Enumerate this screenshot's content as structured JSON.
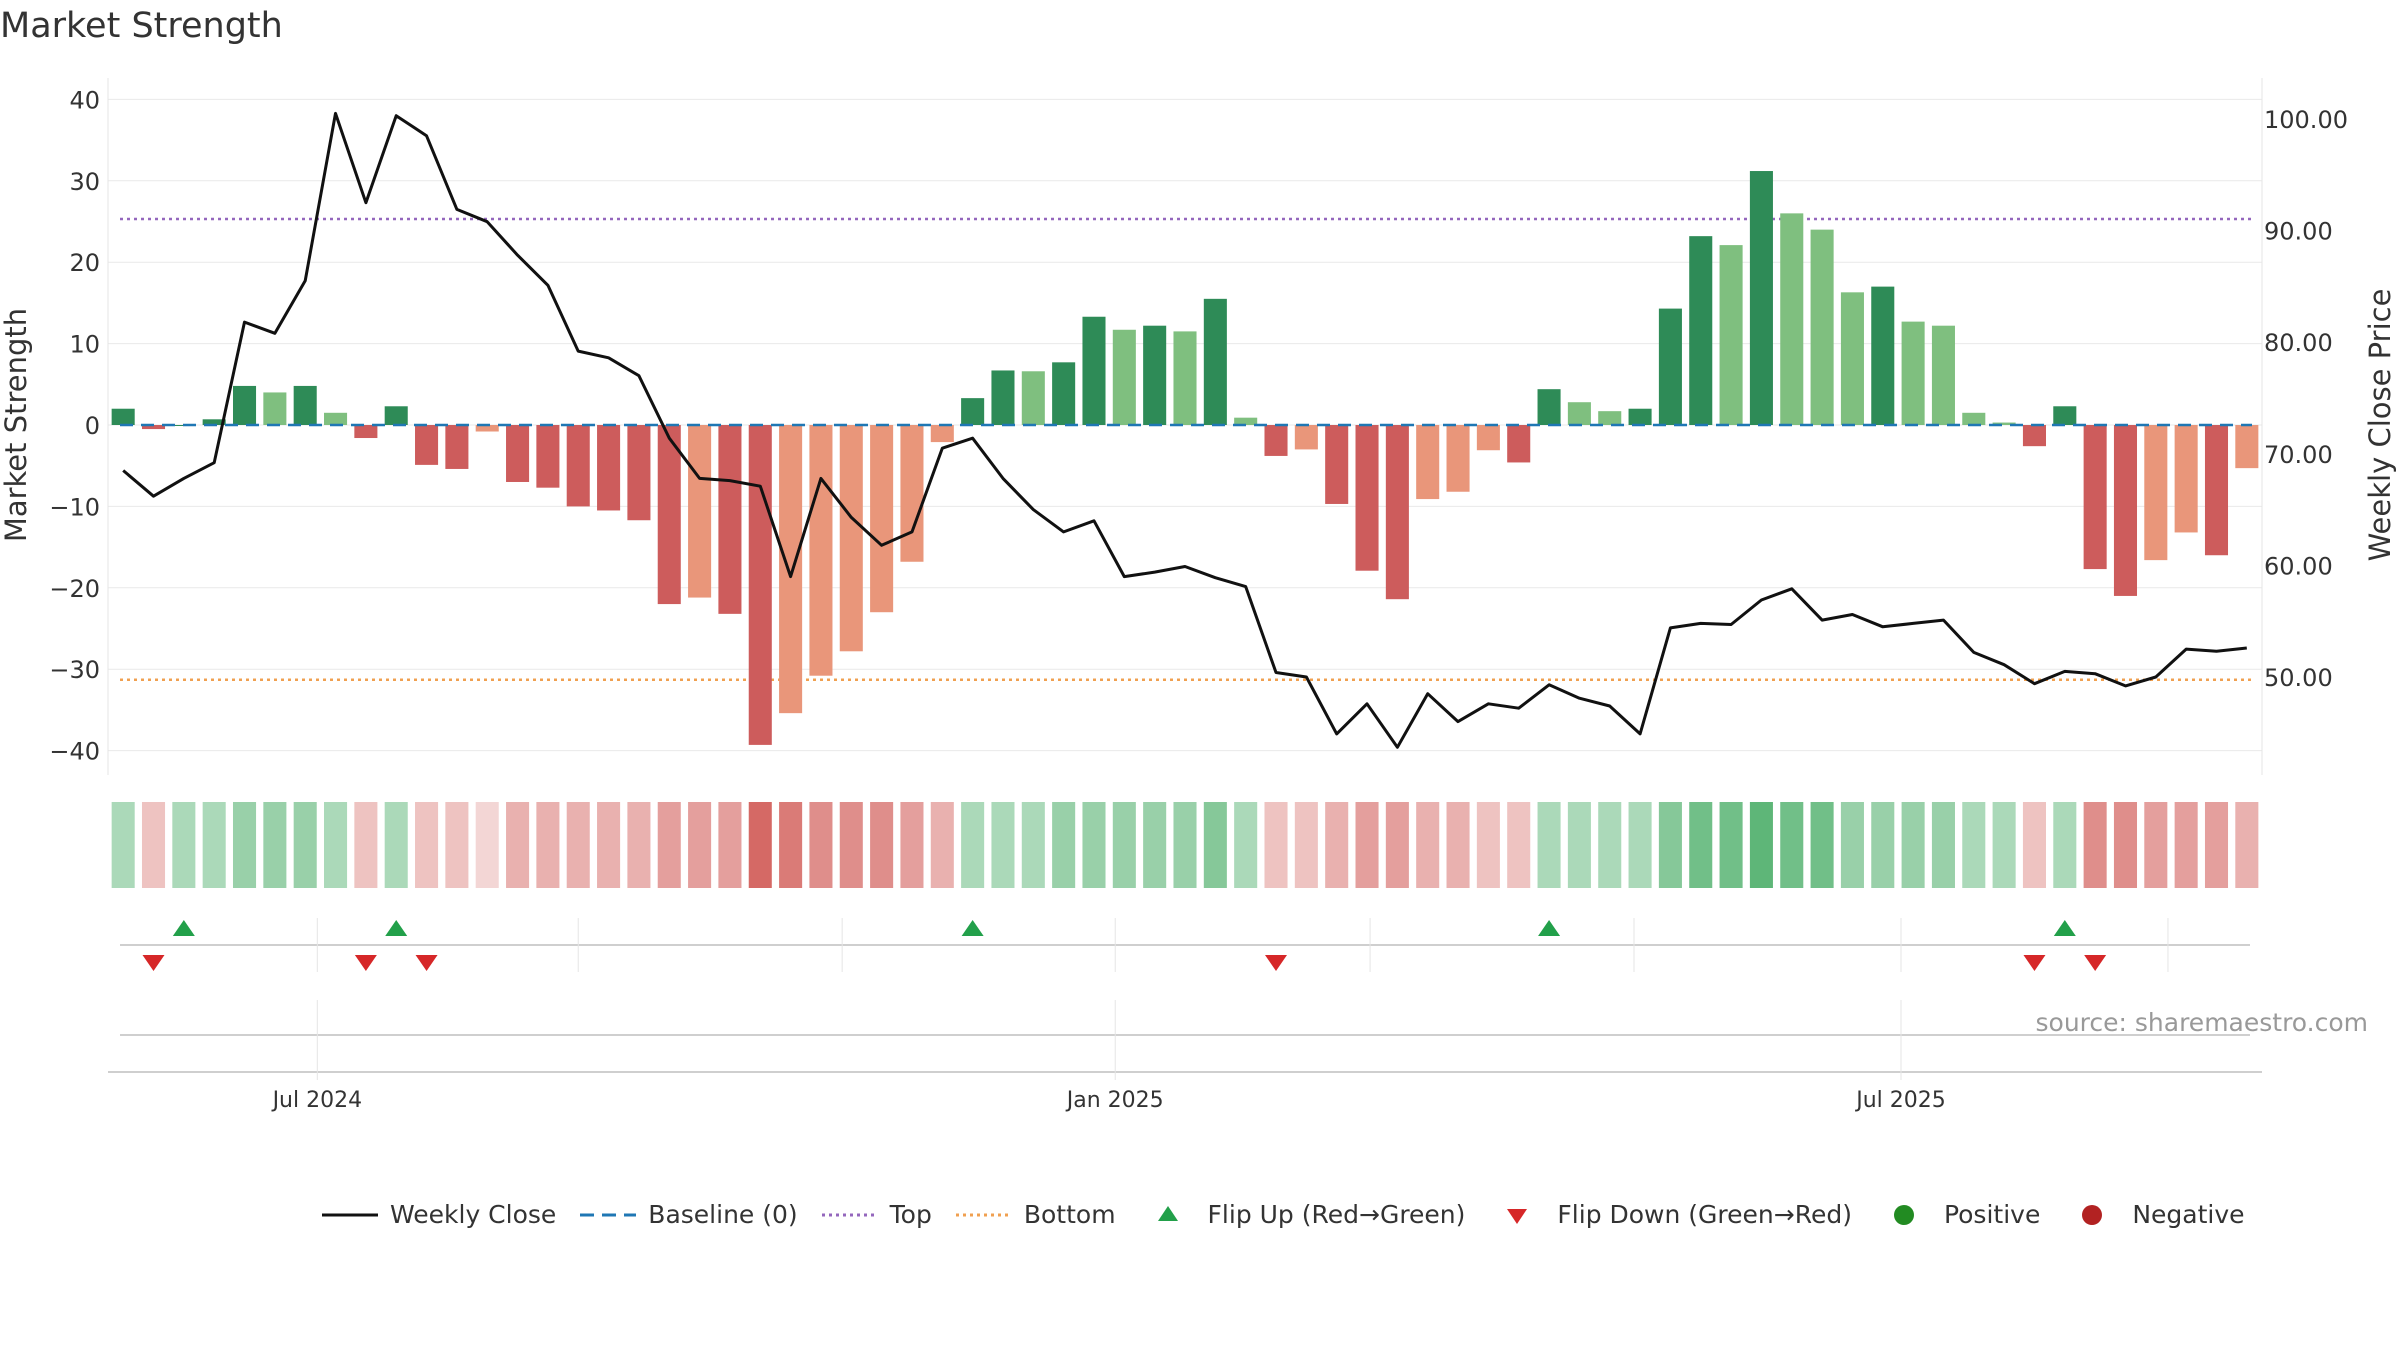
{
  "title": "Market Strength",
  "source": "source: sharemaestro.com",
  "colors": {
    "strong_green": "#2e8b57",
    "light_green": "#7fbf7f",
    "strong_red": "#cd5c5c",
    "light_red": "#e9967a",
    "close_line": "#111111",
    "baseline": "#1f77b4",
    "top_line": "#9467bd",
    "bottom_line": "#f0a050",
    "flip_up": "#22a04a",
    "flip_down": "#d62728",
    "positive": "#228b22",
    "negative": "#b22222"
  },
  "legend": [
    {
      "label": "Weekly Close",
      "kind": "line"
    },
    {
      "label": "Baseline (0)",
      "kind": "dash"
    },
    {
      "label": "Top",
      "kind": "dot-purple"
    },
    {
      "label": "Bottom",
      "kind": "dot-orange"
    },
    {
      "label": "Flip Up (Red→Green)",
      "kind": "tri-up"
    },
    {
      "label": "Flip Down (Green→Red)",
      "kind": "tri-down"
    },
    {
      "label": "Positive",
      "kind": "circle-pos"
    },
    {
      "label": "Negative",
      "kind": "circle-neg"
    }
  ],
  "chart_data": {
    "type": "bar+line",
    "ylabel_left": "Market Strength",
    "ylabel_right": "Weekly Close Price",
    "ylim_left": [
      -45,
      43
    ],
    "ylim_right": [
      40.0,
      102.0
    ],
    "left_ticks": [
      40,
      30,
      20,
      10,
      0,
      -10,
      -20,
      -30,
      -40
    ],
    "left_tick_labels": [
      "40",
      "30",
      "20",
      "10",
      "0",
      "−10",
      "−20",
      "−30",
      "−40"
    ],
    "right_ticks": [
      100,
      90,
      80,
      70,
      60,
      50
    ],
    "right_tick_labels": [
      "100.00",
      "90.00",
      "80.00",
      "70.00",
      "60.00",
      "50.00"
    ],
    "top_threshold": 25.3,
    "bottom_threshold": -31.3,
    "x_ticks": [
      {
        "week": 6.4,
        "label": "Jul 2024"
      },
      {
        "week": 32.7,
        "label": "Jan 2025"
      },
      {
        "week": 58.6,
        "label": "Jul 2025"
      }
    ],
    "minor_ticks": [
      15,
      23.7,
      41.1,
      49.8,
      67.4
    ],
    "strength": [
      2.0,
      -0.5,
      0.0,
      0.7,
      4.8,
      4.0,
      4.8,
      1.5,
      -1.6,
      2.3,
      -4.9,
      -5.4,
      -0.8,
      -7.0,
      -7.7,
      -10.0,
      -10.5,
      -11.7,
      -22.0,
      -21.2,
      -23.2,
      -39.3,
      -35.4,
      -30.8,
      -27.8,
      -23.0,
      -16.8,
      -2.1,
      3.3,
      6.7,
      6.6,
      7.7,
      13.3,
      11.7,
      12.2,
      11.5,
      15.5,
      0.9,
      -3.8,
      -3.0,
      -9.7,
      -17.9,
      -21.4,
      -9.1,
      -8.2,
      -3.1,
      -4.6,
      4.4,
      2.8,
      1.7,
      2.0,
      14.3,
      23.2,
      22.1,
      31.2,
      26.0,
      24.0,
      16.3,
      17.0,
      12.7,
      12.2,
      1.5,
      0.3,
      -2.6,
      2.3,
      -17.7,
      -21.0,
      -16.6,
      -13.2,
      -16.0,
      -5.3
    ],
    "close": [
      68.5,
      66.2,
      67.8,
      69.2,
      81.8,
      80.8,
      85.5,
      100.5,
      92.5,
      100.3,
      98.5,
      91.9,
      90.8,
      87.8,
      85.1,
      79.2,
      78.6,
      77.0,
      71.4,
      67.8,
      67.6,
      67.1,
      59.0,
      67.8,
      64.3,
      61.8,
      63.0,
      70.5,
      71.4,
      67.8,
      65.0,
      63.0,
      64.0,
      59.0,
      59.4,
      59.9,
      58.9,
      58.1,
      50.4,
      50.0,
      44.9,
      47.6,
      43.7,
      48.5,
      46.0,
      47.6,
      47.2,
      49.3,
      48.1,
      47.4,
      44.9,
      54.4,
      54.8,
      54.7,
      56.9,
      57.9,
      55.1,
      55.6,
      54.5,
      54.8,
      55.1,
      52.2,
      51.1,
      49.4,
      50.5,
      50.3,
      49.2,
      50.0,
      52.5,
      52.3,
      52.6
    ],
    "heat_strength": [
      3,
      -2,
      3,
      3,
      4,
      4,
      4,
      3,
      -2,
      3,
      -2,
      -2,
      -1,
      -3,
      -3,
      -3,
      -3,
      -3,
      -4,
      -4,
      -4,
      -7,
      -6,
      -5,
      -5,
      -5,
      -4,
      -3,
      3,
      3,
      3,
      4,
      4,
      4,
      4,
      4,
      5,
      3,
      -2,
      -2,
      -3,
      -4,
      -4,
      -3,
      -3,
      -2,
      -2,
      3,
      3,
      3,
      3,
      5,
      6,
      6,
      7,
      6,
      6,
      4,
      4,
      4,
      4,
      3,
      3,
      -2,
      3,
      -5,
      -5,
      -4,
      -4,
      -4,
      -3
    ],
    "flip_up_weeks": [
      2,
      9,
      28,
      47,
      64
    ],
    "flip_down_weeks": [
      1,
      8,
      10,
      38,
      63,
      65
    ]
  }
}
